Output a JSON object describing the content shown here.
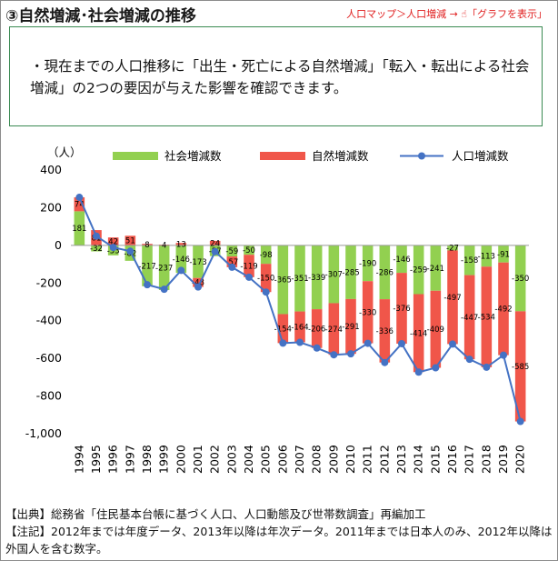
{
  "header": {
    "title": "③自然増減･社会増減の推移",
    "nav_path": "人口マップ＞人口増減",
    "nav_arrow": "→",
    "nav_hand": "☝",
    "nav_action": "「グラフを表示」"
  },
  "note": {
    "text": "・現在までの人口推移に「出生・死亡による自然増減」「転入・転出による社会増減」の2つの要因が与えた影響を確認できます。"
  },
  "chart_data": {
    "type": "bar",
    "subtype": "stacked-bar-with-line",
    "unit_label": "（人）",
    "ylim": [
      -1000,
      400
    ],
    "yticks": [
      "400",
      "200",
      "0",
      "-200",
      "-400",
      "-600",
      "-800",
      "-1,000"
    ],
    "categories": [
      "1994",
      "1995",
      "1996",
      "1997",
      "1998",
      "1999",
      "2000",
      "2001",
      "2002",
      "2003",
      "2004",
      "2005",
      "2006",
      "2007",
      "2008",
      "2009",
      "2010",
      "2011",
      "2012",
      "2013",
      "2014",
      "2015",
      "2016",
      "2017",
      "2018",
      "2019",
      "2020"
    ],
    "series": [
      {
        "name": "社会増減数",
        "kind": "bar",
        "color": "#92d050",
        "values": [
          181,
          -32,
          -53,
          -82,
          -217,
          -237,
          -146,
          -173,
          -57,
          -59,
          -50,
          -98,
          -365,
          -351,
          -339,
          -307,
          -285,
          -190,
          -286,
          -146,
          -259,
          -241,
          -27,
          -158,
          -113,
          -91,
          -350
        ]
      },
      {
        "name": "自然増減数",
        "kind": "bar",
        "color": "#f0564a",
        "values": [
          74,
          81,
          42,
          51,
          8,
          4,
          13,
          -48,
          24,
          -57,
          -119,
          -150,
          -154,
          -164,
          -206,
          -274,
          -291,
          -330,
          -336,
          -376,
          -414,
          -409,
          -497,
          -447,
          -534,
          -492,
          -585
        ]
      },
      {
        "name": "人口増減数",
        "kind": "line",
        "color": "#4472c4",
        "values": [
          255,
          49,
          -11,
          -31,
          -209,
          -233,
          -133,
          -221,
          -33,
          -116,
          -169,
          -248,
          -519,
          -515,
          -545,
          -581,
          -576,
          -520,
          -622,
          -522,
          -673,
          -650,
          -524,
          -605,
          -647,
          -583,
          -935
        ]
      }
    ],
    "label_texts": {
      "social": [
        "181",
        "-32",
        "-53",
        "-82",
        "-217",
        "-237",
        "-146",
        "-173",
        "-57",
        "-59",
        "-50",
        "-98",
        "-365",
        "-351",
        "-339",
        "-307",
        "-285",
        "-190",
        "-286",
        "-146",
        "-259",
        "-241",
        "-27",
        "-158",
        "-113",
        "-91",
        "-350"
      ],
      "natural": [
        "74",
        "81",
        "42",
        "51",
        "8",
        "4",
        "13",
        "-48",
        "24",
        "-57",
        "-119",
        "-150",
        "-154",
        "-164",
        "-206",
        "-274",
        "-291",
        "-330",
        "-336",
        "-376",
        "-414",
        "-409",
        "-497",
        "-447",
        "-534",
        "-492",
        "-585"
      ]
    }
  },
  "footer": {
    "source": "【出典】総務省「住民基本台帳に基づく人口、人口動態及び世帯数調査」再編加工",
    "annotation": "【注記】2012年までは年度データ、2013年以降は年次データ。2011年までは日本人のみ、2012年以降は外国人を含む数字。"
  }
}
